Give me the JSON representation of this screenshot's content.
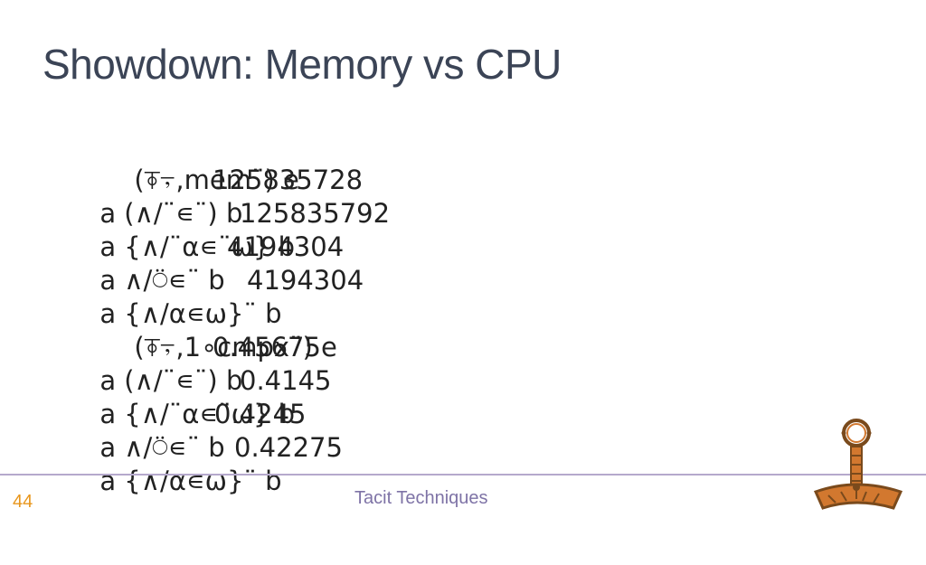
{
  "slide": {
    "title": "Showdown: Memory vs CPU",
    "page_number": "44",
    "footer_text": "Tacit Techniques"
  },
  "code": {
    "memory_header": "(⍕⍪,mem¨) e",
    "memory_rows": [
      {
        "expr": "a (∧/¨∊¨) b",
        "value": "125835728"
      },
      {
        "expr": "a {∧/¨⍺∊¨⍵} b",
        "value": "125835792"
      },
      {
        "expr": "a ∧/⍥∊¨ b",
        "value": "4194304"
      },
      {
        "expr": "a {∧/⍺∊⍵}¨ b",
        "value": "4194304"
      }
    ],
    "cpu_header": "(⍕⍪,1∘cmpx¨) e",
    "cpu_rows": [
      {
        "expr": "a (∧/¨∊¨) b",
        "value": "0.45675"
      },
      {
        "expr": "a {∧/¨⍺∊¨⍵} b",
        "value": "0.4145"
      },
      {
        "expr": "a ∧/⍥∊¨ b",
        "value": "0.4245"
      },
      {
        "expr": "a {∧/⍺∊⍵}¨ b",
        "value": "0.42275"
      }
    ]
  },
  "logo": {
    "icon": "amulet-logo-icon",
    "colors": {
      "brown": "#7a4a1c",
      "orange": "#d2782f"
    }
  }
}
